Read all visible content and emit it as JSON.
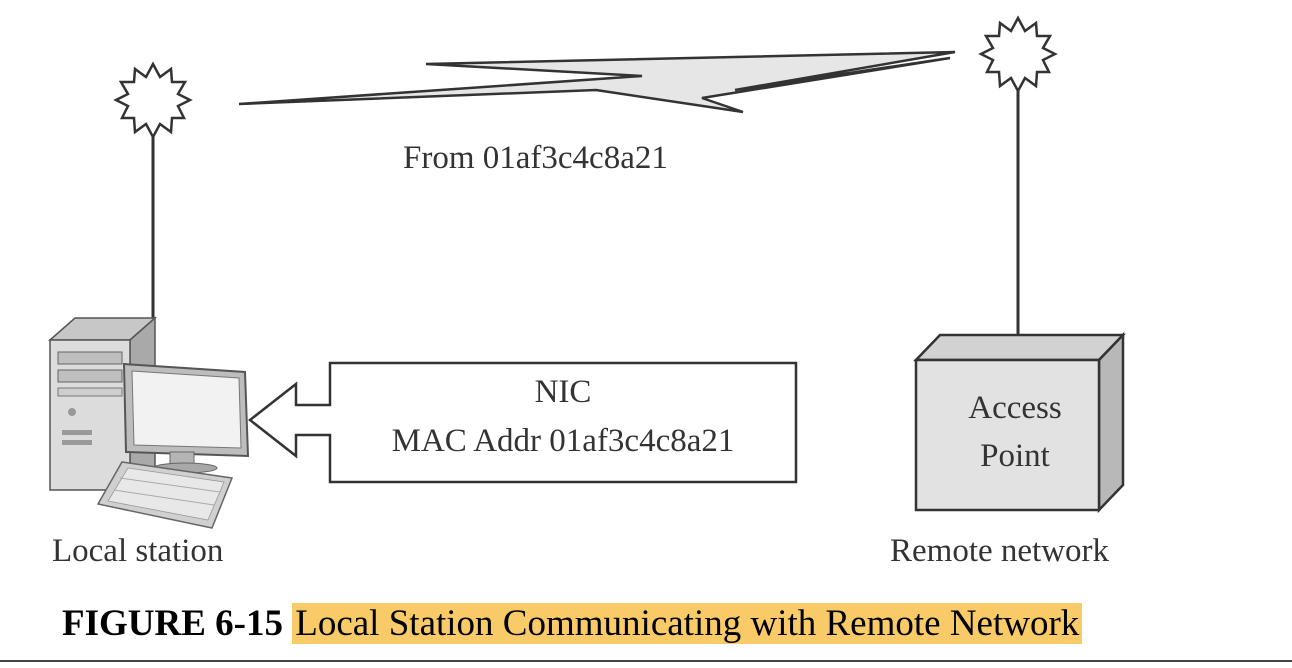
{
  "signal": {
    "label": "From 01af3c4c8a21"
  },
  "local_station": {
    "label": "Local station"
  },
  "nic_box": {
    "line1": "NIC",
    "line2": "MAC Addr 01af3c4c8a21"
  },
  "access_point": {
    "line1": "Access",
    "line2": "Point"
  },
  "remote_network": {
    "label": "Remote network"
  },
  "caption": {
    "number": "FIGURE 6-15",
    "title": "Local Station Communicating with Remote Network",
    "highlight_color": "#f9cb68"
  },
  "icons": [
    "antenna-burst-icon",
    "lightning-bolt-icon",
    "desktop-computer-icon",
    "access-point-box-icon",
    "hollow-arrow-icon"
  ]
}
